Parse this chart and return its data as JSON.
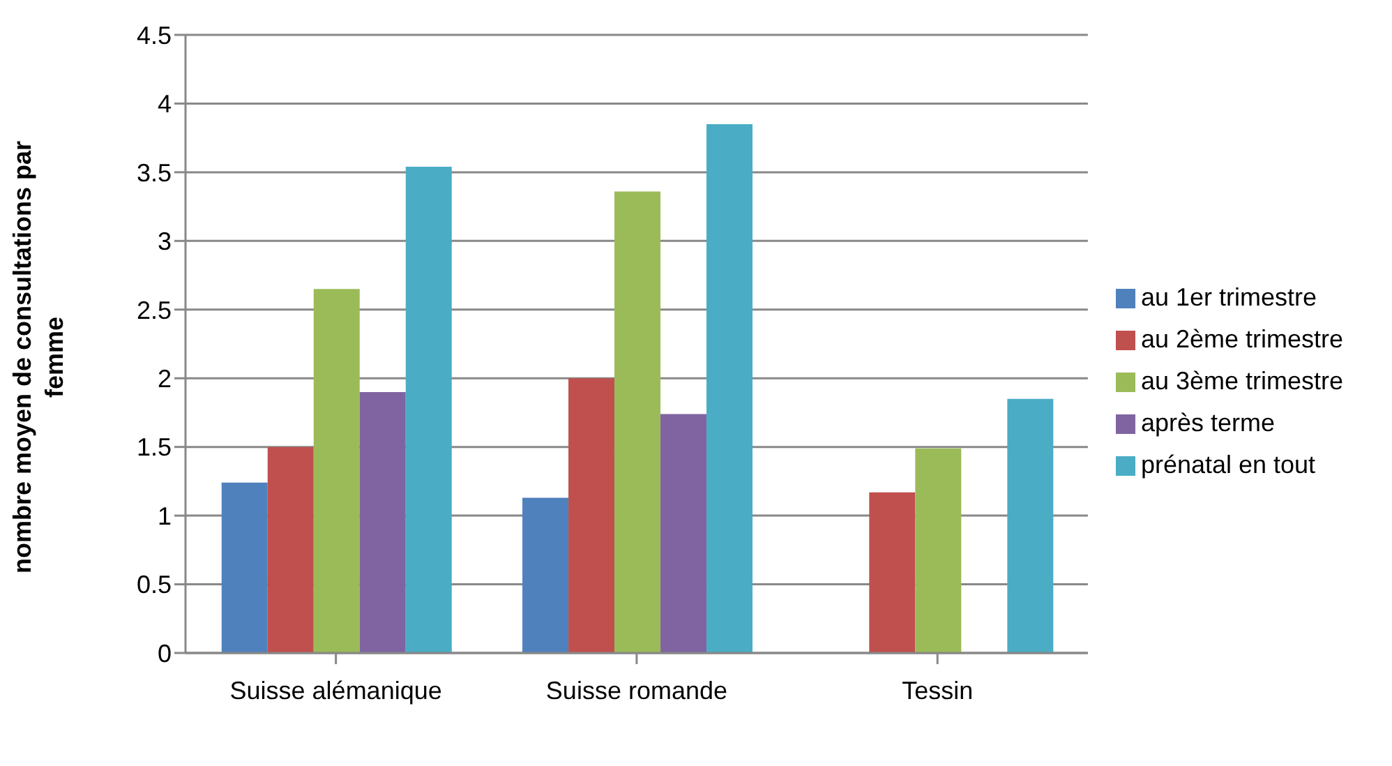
{
  "chart_data": {
    "type": "bar",
    "ylabel": "nombre moyen de consultations par femme",
    "categories": [
      "Suisse alémanique",
      "Suisse romande",
      "Tessin"
    ],
    "series": [
      {
        "name": "au 1er trimestre",
        "color": "#4f81bd",
        "values": [
          1.24,
          1.13,
          null
        ]
      },
      {
        "name": "au 2ème trimestre",
        "color": "#c0504d",
        "values": [
          1.5,
          2.0,
          1.17
        ]
      },
      {
        "name": "au 3ème trimestre",
        "color": "#9bbb59",
        "values": [
          2.65,
          3.36,
          1.49
        ]
      },
      {
        "name": "après terme",
        "color": "#8064a2",
        "values": [
          1.9,
          1.74,
          null
        ]
      },
      {
        "name": "prénatal en tout",
        "color": "#4bacc6",
        "values": [
          3.54,
          3.85,
          1.85
        ]
      }
    ],
    "ylim": [
      0,
      4.5
    ],
    "yticks": [
      0,
      0.5,
      1,
      1.5,
      2,
      2.5,
      3,
      3.5,
      4,
      4.5
    ],
    "grid": "y",
    "legend": "right"
  }
}
